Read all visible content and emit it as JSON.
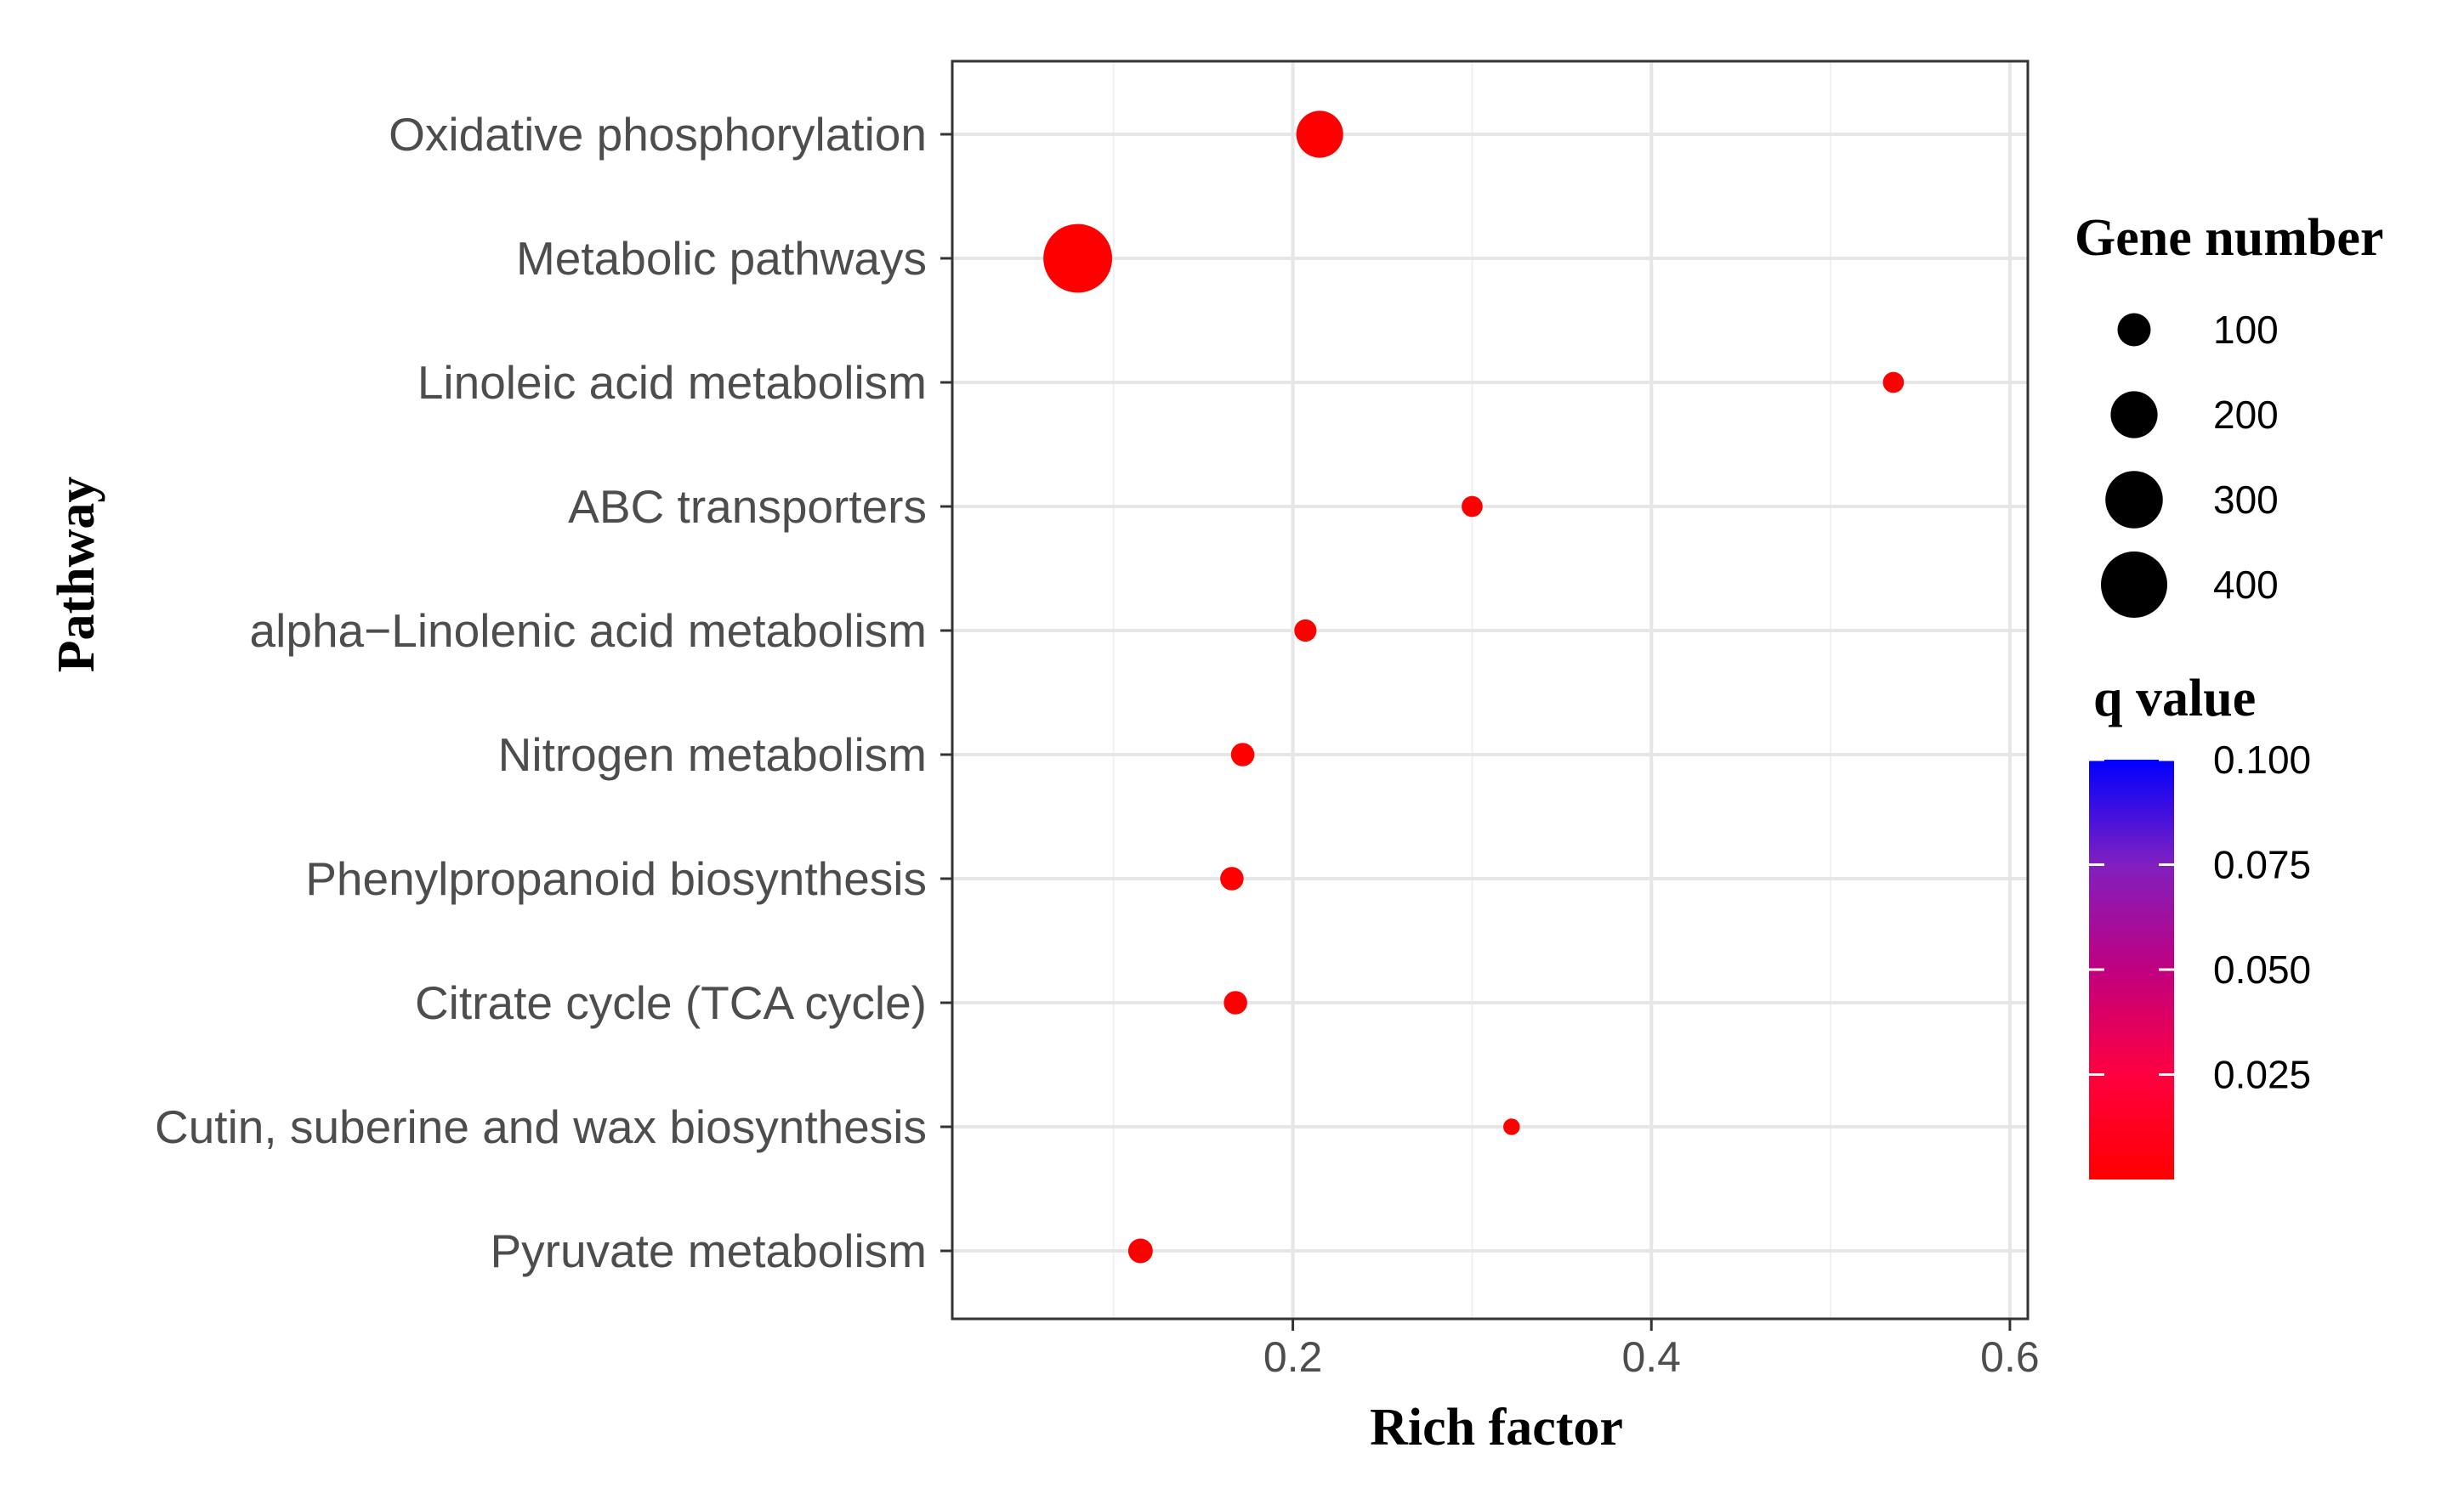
{
  "chart_data": {
    "type": "scatter",
    "title": "",
    "xlabel": "Rich factor",
    "ylabel": "Pathway",
    "xlim": [
      0.01,
      0.61
    ],
    "xticks": [
      0.2,
      0.4,
      0.6
    ],
    "xtick_labels": [
      "0.2",
      "0.4",
      "0.6"
    ],
    "grid": true,
    "point_color": "#ff0000",
    "points": [
      {
        "pathway": "Oxidative phosphorylation",
        "rich_factor": 0.215,
        "gene_number": 200,
        "q_value": 0.0
      },
      {
        "pathway": "Metabolic pathways",
        "rich_factor": 0.08,
        "gene_number": 430,
        "q_value": 0.0
      },
      {
        "pathway": "Linoleic acid metabolism",
        "rich_factor": 0.535,
        "gene_number": 40,
        "q_value": 0.0
      },
      {
        "pathway": "ABC transporters",
        "rich_factor": 0.3,
        "gene_number": 40,
        "q_value": 0.0
      },
      {
        "pathway": "alpha−Linolenic acid metabolism",
        "rich_factor": 0.207,
        "gene_number": 45,
        "q_value": 0.0
      },
      {
        "pathway": "Nitrogen metabolism",
        "rich_factor": 0.172,
        "gene_number": 50,
        "q_value": 0.0
      },
      {
        "pathway": "Phenylpropanoid biosynthesis",
        "rich_factor": 0.166,
        "gene_number": 50,
        "q_value": 0.0
      },
      {
        "pathway": "Citrate cycle (TCA cycle)",
        "rich_factor": 0.168,
        "gene_number": 50,
        "q_value": 0.0
      },
      {
        "pathway": "Cutin, suberine and wax biosynthesis",
        "rich_factor": 0.322,
        "gene_number": 25,
        "q_value": 0.0
      },
      {
        "pathway": "Pyruvate metabolism",
        "rich_factor": 0.115,
        "gene_number": 55,
        "q_value": 0.0
      }
    ],
    "size_legend": {
      "title": "Gene number",
      "values": [
        100,
        200,
        300,
        400
      ],
      "labels": [
        "100",
        "200",
        "300",
        "400"
      ]
    },
    "color_legend": {
      "title": "q value",
      "low_color": "#ff0000",
      "high_color": "#0000ff",
      "range": [
        0.0,
        0.1
      ],
      "ticks": [
        0.025,
        0.05,
        0.075,
        0.1
      ],
      "labels": [
        "0.025",
        "0.050",
        "0.075",
        "0.100"
      ]
    }
  }
}
